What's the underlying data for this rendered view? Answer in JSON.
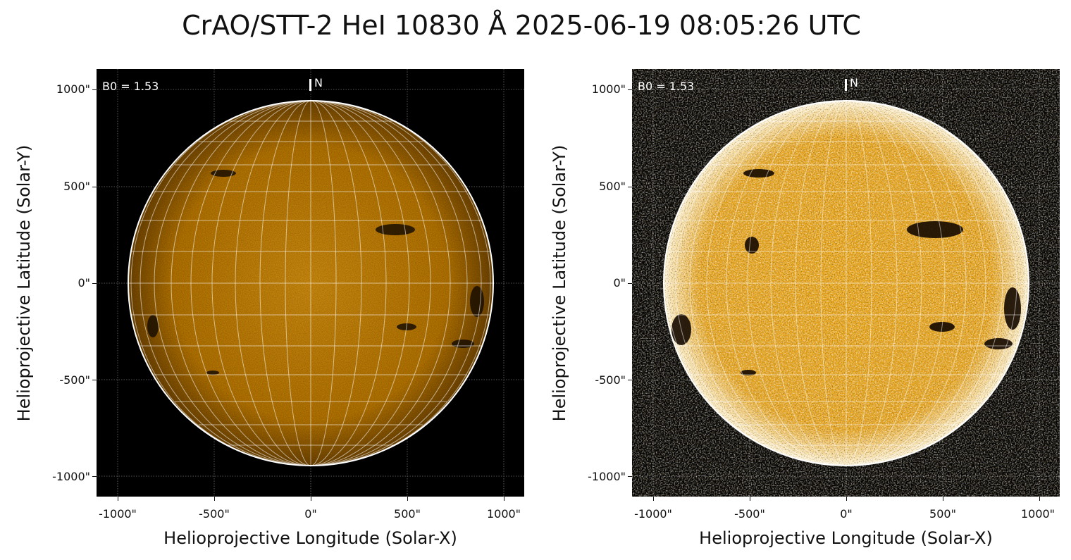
{
  "title": "CrAO/STT-2 HeI 10830 Å 2025-06-19 08:05:26 UTC",
  "colors": {
    "disk_left": "#d98c00",
    "disk_right": "#e6a010",
    "background": "#000000",
    "grid": "#ffffff"
  },
  "panels": [
    {
      "b0_label": "B0 = 1.53",
      "north_label": "N",
      "xlabel": "Helioprojective Longitude (Solar-X)",
      "ylabel": "Helioprojective Latitude (Solar-Y)",
      "xticks": [
        "-1000\"",
        "-500\"",
        "0\"",
        "500\"",
        "1000\""
      ],
      "yticks": [
        "1000\"",
        "500\"",
        "0\"",
        "-500\"",
        "-1000\""
      ]
    },
    {
      "b0_label": "B0 = 1.53",
      "north_label": "N",
      "xlabel": "Helioprojective Longitude (Solar-X)",
      "ylabel": "Helioprojective Latitude (Solar-Y)",
      "xticks": [
        "-1000\"",
        "-500\"",
        "0\"",
        "500\"",
        "1000\""
      ],
      "yticks": [
        "1000\"",
        "500\"",
        "0\"",
        "-500\"",
        "-1000\""
      ]
    }
  ]
}
